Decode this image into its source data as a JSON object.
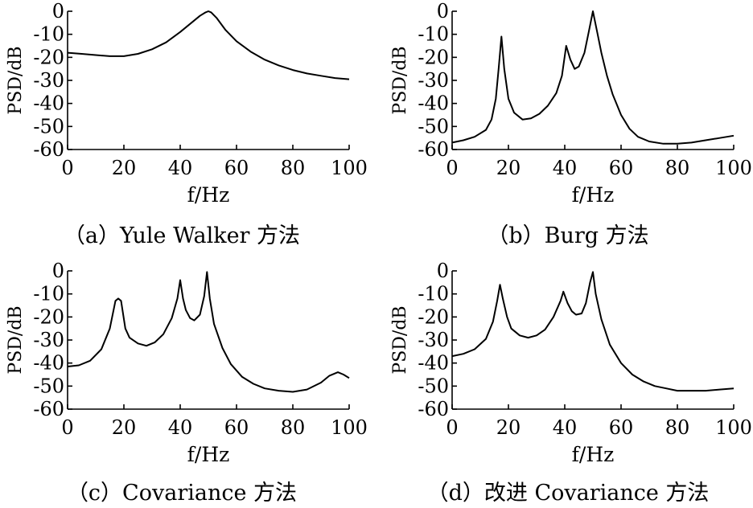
{
  "chart_data": [
    {
      "type": "line",
      "caption": "（a）Yule Walker 方法",
      "xlabel": "f/Hz",
      "ylabel": "PSD/dB",
      "xlim": [
        0,
        100
      ],
      "ylim": [
        -60,
        0
      ],
      "xticks": [
        "0",
        "20",
        "40",
        "60",
        "80",
        "100"
      ],
      "yticks": [
        "0",
        "-10",
        "-20",
        "-30",
        "-40",
        "-50",
        "-60"
      ],
      "grid": false,
      "x": [
        0,
        5,
        10,
        15,
        20,
        25,
        30,
        35,
        40,
        44,
        47,
        49,
        50,
        51,
        53,
        56,
        60,
        65,
        70,
        75,
        80,
        85,
        90,
        95,
        100
      ],
      "y": [
        -18,
        -18.5,
        -19,
        -19.5,
        -19.5,
        -18.5,
        -16.5,
        -13.5,
        -9,
        -5,
        -2,
        -0.5,
        0,
        -0.5,
        -3,
        -8,
        -13,
        -17.5,
        -21,
        -23.5,
        -25.5,
        -27,
        -28,
        -29,
        -29.5
      ]
    },
    {
      "type": "line",
      "caption": "（b）Burg 方法",
      "xlabel": "f/Hz",
      "ylabel": "PSD/dB",
      "xlim": [
        0,
        100
      ],
      "ylim": [
        -60,
        0
      ],
      "xticks": [
        "0",
        "20",
        "40",
        "60",
        "80",
        "100"
      ],
      "yticks": [
        "0",
        "-10",
        "-20",
        "-30",
        "-40",
        "-50",
        "-60"
      ],
      "grid": false,
      "x": [
        0,
        4,
        8,
        12,
        14,
        15.5,
        16.5,
        17.5,
        18.5,
        20,
        22,
        25,
        28,
        31,
        34,
        37,
        39,
        40.5,
        42,
        43.5,
        45,
        47,
        48.5,
        50,
        51.5,
        53,
        55,
        57,
        60,
        63,
        66,
        70,
        75,
        80,
        85,
        90,
        95,
        100
      ],
      "y": [
        -57,
        -56,
        -54.5,
        -51.5,
        -47,
        -38,
        -25,
        -11,
        -25,
        -38,
        -44,
        -47,
        -46.5,
        -44.5,
        -41,
        -35.5,
        -28,
        -15,
        -21,
        -25,
        -24,
        -18,
        -9,
        0,
        -9,
        -18,
        -28,
        -36,
        -45,
        -51,
        -54.5,
        -56.5,
        -57.5,
        -57.5,
        -57,
        -56,
        -55,
        -54
      ]
    },
    {
      "type": "line",
      "caption": "（c）Covariance 方法",
      "xlabel": "f/Hz",
      "ylabel": "PSD/dB",
      "xlim": [
        0,
        100
      ],
      "ylim": [
        -60,
        0
      ],
      "xticks": [
        "0",
        "20",
        "40",
        "60",
        "80",
        "100"
      ],
      "yticks": [
        "0",
        "-10",
        "-20",
        "-30",
        "-40",
        "-50",
        "-60"
      ],
      "grid": false,
      "x": [
        0,
        4,
        8,
        12,
        15,
        17,
        18,
        19,
        20.5,
        22,
        25,
        28,
        31,
        34,
        37,
        39,
        40,
        41,
        42,
        43.5,
        45,
        47,
        48.5,
        49.5,
        50.5,
        52,
        55,
        58,
        62,
        66,
        70,
        75,
        80,
        85,
        90,
        93,
        96,
        98,
        100
      ],
      "y": [
        -41.5,
        -41,
        -39,
        -34,
        -25,
        -13,
        -12,
        -13,
        -25,
        -29,
        -31.5,
        -32.5,
        -31,
        -27.5,
        -20.5,
        -12,
        -4,
        -12,
        -17,
        -20.5,
        -21.5,
        -19,
        -11,
        -0.5,
        -12,
        -23,
        -33.5,
        -40.5,
        -46,
        -49,
        -51,
        -52,
        -52.5,
        -51.5,
        -48.5,
        -45.5,
        -44,
        -45,
        -46.5
      ]
    },
    {
      "type": "line",
      "caption": "（d）改进 Covariance 方法",
      "xlabel": "f/Hz",
      "ylabel": "PSD/dB",
      "xlim": [
        0,
        100
      ],
      "ylim": [
        -60,
        0
      ],
      "xticks": [
        "0",
        "20",
        "40",
        "60",
        "80",
        "100"
      ],
      "yticks": [
        "0",
        "-10",
        "-20",
        "-30",
        "-40",
        "-50",
        "-60"
      ],
      "grid": false,
      "x": [
        0,
        4,
        8,
        12,
        14.5,
        16,
        17,
        18,
        19.5,
        21,
        24,
        27,
        30,
        33,
        36,
        38.5,
        39.5,
        41,
        42.5,
        44,
        46,
        47.5,
        49,
        50,
        51,
        53,
        56,
        60,
        64,
        68,
        72,
        76,
        80,
        85,
        90,
        95,
        100
      ],
      "y": [
        -37,
        -36,
        -34,
        -29.5,
        -22,
        -13,
        -6,
        -12,
        -20,
        -25,
        -28,
        -29,
        -28,
        -25.5,
        -20,
        -13,
        -9,
        -14,
        -17.5,
        -19,
        -18.5,
        -14,
        -5,
        -0.5,
        -10,
        -21,
        -32,
        -40,
        -45,
        -48,
        -50,
        -51,
        -52,
        -52,
        -52,
        -51.5,
        -51
      ]
    }
  ]
}
